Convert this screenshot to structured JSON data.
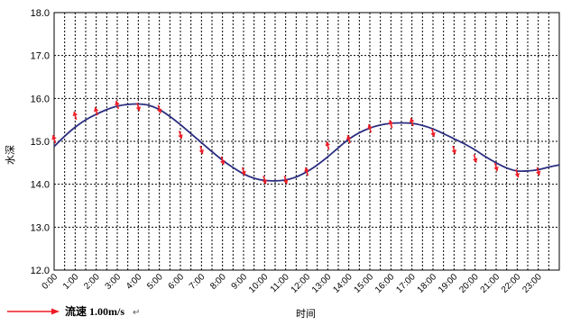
{
  "chart_data": {
    "type": "line",
    "title": "",
    "xlabel": "时间",
    "ylabel": "水深",
    "ylim": [
      12.0,
      18.0
    ],
    "xlim": [
      0,
      24
    ],
    "y_ticks": [
      "12.0",
      "13.0",
      "14.0",
      "15.0",
      "16.0",
      "17.0",
      "18.0"
    ],
    "x_tick_labels": [
      "0:00",
      "1:00",
      "2:00",
      "3:00",
      "4:00",
      "5:00",
      "6:00",
      "7:00",
      "8:00",
      "9:00",
      "10:00",
      "11:00",
      "12:00",
      "13:00",
      "14:00",
      "15:00",
      "16:00",
      "17:00",
      "18:00",
      "19:00",
      "20:00",
      "21:00",
      "22:00",
      "23:00"
    ],
    "grid": "dashed vertical lines at each hour and tick between; dashed horizontal lines at each 1.0",
    "series": [
      {
        "color": "#2b2e80",
        "x": [
          0,
          0.5,
          1,
          1.5,
          2,
          2.5,
          3,
          3.5,
          4,
          4.5,
          5,
          5.5,
          6,
          6.5,
          7,
          7.5,
          8,
          8.5,
          9,
          9.5,
          10,
          10.5,
          11,
          11.5,
          12,
          12.5,
          13,
          13.5,
          14,
          14.5,
          15,
          15.5,
          16,
          16.5,
          17,
          17.5,
          18,
          18.5,
          19,
          19.5,
          20,
          20.5,
          21,
          21.5,
          22,
          22.5,
          23,
          23.5,
          24
        ],
        "values": [
          14.88,
          15.12,
          15.33,
          15.5,
          15.63,
          15.74,
          15.82,
          15.86,
          15.87,
          15.84,
          15.74,
          15.58,
          15.39,
          15.18,
          14.97,
          14.76,
          14.56,
          14.39,
          14.24,
          14.14,
          14.09,
          14.08,
          14.1,
          14.17,
          14.29,
          14.45,
          14.64,
          14.85,
          15.05,
          15.2,
          15.31,
          15.38,
          15.42,
          15.43,
          15.42,
          15.37,
          15.29,
          15.18,
          15.06,
          14.94,
          14.8,
          14.64,
          14.5,
          14.38,
          14.31,
          14.31,
          14.34,
          14.4,
          14.45
        ]
      }
    ],
    "current_vectors": {
      "color": "#ee1c25",
      "unit_label": "流速 1.00m/s",
      "unit_speed": 1.0,
      "items": [
        {
          "t": 0,
          "y": 15.05,
          "direction": "up"
        },
        {
          "t": 1,
          "y": 15.6,
          "direction": "up"
        },
        {
          "t": 2,
          "y": 15.7,
          "direction": "up"
        },
        {
          "t": 3,
          "y": 15.85,
          "direction": "up"
        },
        {
          "t": 4,
          "y": 15.8,
          "direction": "down"
        },
        {
          "t": 5,
          "y": 15.75,
          "direction": "down"
        },
        {
          "t": 6,
          "y": 15.15,
          "direction": "down"
        },
        {
          "t": 7,
          "y": 14.8,
          "direction": "down"
        },
        {
          "t": 8,
          "y": 14.55,
          "direction": "down"
        },
        {
          "t": 9,
          "y": 14.3,
          "direction": "down"
        },
        {
          "t": 10,
          "y": 14.1,
          "direction": "down"
        },
        {
          "t": 11,
          "y": 14.1,
          "direction": "down"
        },
        {
          "t": 12,
          "y": 14.3,
          "direction": "up"
        },
        {
          "t": 13,
          "y": 14.9,
          "direction": "up"
        },
        {
          "t": 14,
          "y": 15.05,
          "direction": "up"
        },
        {
          "t": 15,
          "y": 15.3,
          "direction": "up"
        },
        {
          "t": 16,
          "y": 15.4,
          "direction": "up"
        },
        {
          "t": 17,
          "y": 15.45,
          "direction": "up"
        },
        {
          "t": 18,
          "y": 15.2,
          "direction": "down"
        },
        {
          "t": 19,
          "y": 14.8,
          "direction": "down"
        },
        {
          "t": 20,
          "y": 14.6,
          "direction": "down"
        },
        {
          "t": 21,
          "y": 14.4,
          "direction": "down"
        },
        {
          "t": 22,
          "y": 14.25,
          "direction": "down"
        },
        {
          "t": 23,
          "y": 14.3,
          "direction": "down"
        }
      ]
    }
  },
  "legend": {
    "label": "流速 1.00m/s",
    "suffix": "↵"
  }
}
